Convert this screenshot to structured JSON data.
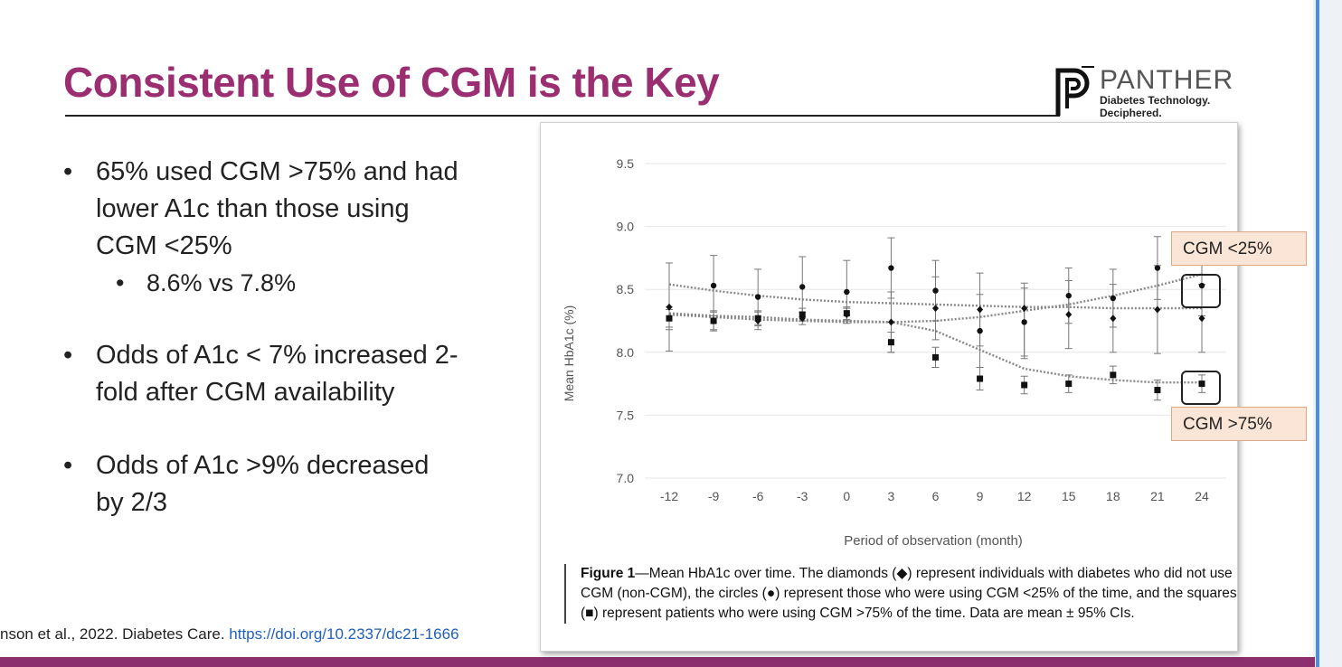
{
  "slide": {
    "title": "Consistent Use of CGM is the Key",
    "citation_text": "nson et al., 2022. Diabetes Care.",
    "citation_link": "https://doi.org/10.2337/dc21-1666"
  },
  "logo": {
    "name": "PANTHER",
    "tagline_line1": "Diabetes Technology.",
    "tagline_line2": "Deciphered.",
    "mark": "panther-logo-icon"
  },
  "bullets": {
    "b1_line1": "65% used CGM >75% and had",
    "b1_line2": "lower A1c than those using",
    "b1_line3": "CGM <25%",
    "b1_sub": "8.6% vs 7.8%",
    "b2_line1": "Odds of A1c < 7% increased  2-",
    "b2_line2": "fold after CGM availability",
    "b3_line1": "Odds of A1c >9% decreased",
    "b3_line2": "by 2/3",
    "bullet_glyph": "•"
  },
  "callouts": {
    "low": "CGM <25%",
    "high": "CGM >75%"
  },
  "caption": {
    "label": "Figure 1",
    "text": "—Mean HbA1c over time. The diamonds (◆) represent individuals with diabetes who did not use CGM (non-CGM), the circles (●) represent those who were using CGM <25% of the time, and the squares (■) represent patients who were using CGM >75% of the time. Data are mean ± 95% CIs."
  },
  "chart_data": {
    "type": "scatter",
    "title": "",
    "xlabel": "Period of observation (month)",
    "ylabel": "Mean HbA1c (%)",
    "x": [
      -12,
      -9,
      -6,
      -3,
      0,
      3,
      6,
      9,
      12,
      15,
      18,
      21,
      24
    ],
    "x_tick_labels": [
      "-12",
      "-9",
      "-6",
      "-3",
      "0",
      "3",
      "6",
      "9",
      "12",
      "15",
      "18",
      "21",
      "24"
    ],
    "ylim": [
      7.0,
      9.5
    ],
    "y_ticks": [
      7.0,
      7.5,
      8.0,
      8.5,
      9.0,
      9.5
    ],
    "y_tick_labels": [
      "7.0",
      "7.5",
      "8.0",
      "8.5",
      "9.0",
      "9.5"
    ],
    "grid": true,
    "colors": {
      "points": "#111111",
      "grid": "#e6e6e6",
      "trend": "#888888",
      "axis_text": "#555555"
    },
    "series": [
      {
        "name": "non-CGM",
        "marker": "diamond",
        "values": [
          8.36,
          8.25,
          8.25,
          8.27,
          8.3,
          8.24,
          8.35,
          8.34,
          8.35,
          8.3,
          8.27,
          8.34,
          8.27
        ],
        "ci_low": [
          8.01,
          8.17,
          8.18,
          8.22,
          8.25,
          8.0,
          8.1,
          8.05,
          7.95,
          8.03,
          8.0,
          7.99,
          8.0
        ],
        "ci_high": [
          8.71,
          8.33,
          8.32,
          8.32,
          8.35,
          8.48,
          8.6,
          8.63,
          8.55,
          8.57,
          8.54,
          8.69,
          8.54
        ],
        "trend": [
          8.54,
          8.49,
          8.45,
          8.42,
          8.4,
          8.39,
          8.38,
          8.37,
          8.36,
          8.36,
          8.35,
          8.35,
          8.35
        ]
      },
      {
        "name": "CGM <25%",
        "marker": "circle",
        "values": [
          8.27,
          8.53,
          8.44,
          8.52,
          8.48,
          8.67,
          8.49,
          8.17,
          8.24,
          8.45,
          8.43,
          8.67,
          8.53
        ],
        "ci_low": [
          8.18,
          8.29,
          8.22,
          8.28,
          8.23,
          8.43,
          8.25,
          7.88,
          7.97,
          8.23,
          8.2,
          8.42,
          8.29
        ],
        "ci_high": [
          8.36,
          8.77,
          8.66,
          8.76,
          8.73,
          8.91,
          8.73,
          8.46,
          8.51,
          8.67,
          8.66,
          8.92,
          8.77
        ],
        "trend": [
          8.3,
          8.28,
          8.26,
          8.25,
          8.24,
          8.24,
          8.25,
          8.28,
          8.33,
          8.38,
          8.45,
          8.53,
          8.62
        ]
      },
      {
        "name": "CGM >75%",
        "marker": "square",
        "values": [
          8.27,
          8.25,
          8.27,
          8.3,
          8.31,
          8.08,
          7.96,
          7.79,
          7.74,
          7.75,
          7.82,
          7.7,
          7.75
        ],
        "ci_low": [
          8.2,
          8.18,
          8.21,
          8.25,
          8.26,
          8.0,
          7.88,
          7.7,
          7.67,
          7.68,
          7.75,
          7.62,
          7.68
        ],
        "ci_high": [
          8.34,
          8.32,
          8.33,
          8.35,
          8.36,
          8.16,
          8.04,
          7.88,
          7.81,
          7.82,
          7.89,
          7.78,
          7.82
        ],
        "trend": [
          8.31,
          8.29,
          8.28,
          8.26,
          8.25,
          8.24,
          8.17,
          8.02,
          7.87,
          7.81,
          7.78,
          7.76,
          7.76
        ]
      }
    ]
  }
}
